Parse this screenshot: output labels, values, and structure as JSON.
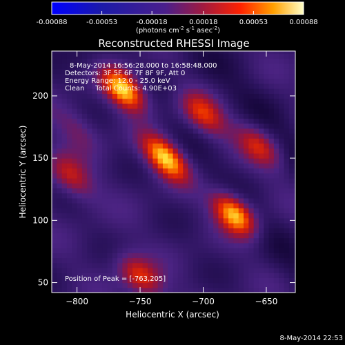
{
  "chart_data": {
    "type": "heatmap",
    "title": "Reconstructed RHESSI Image",
    "colorbar": {
      "ticks": [
        "-0.00088",
        "-0.00053",
        "-0.00018",
        "0.00018",
        "0.00053",
        "0.00088"
      ],
      "range": [
        -0.00088,
        0.00088
      ],
      "unit_base": "(photons cm",
      "unit_sup1": "-2",
      "unit_mid": " s",
      "unit_sup2": "-1",
      "unit_mid2": " asec",
      "unit_sup3": "-2",
      "unit_end": ")"
    },
    "annotations": {
      "time": "8-May-2014 16:56:28.000 to 16:58:48.000",
      "detectors": "Detectors: 3F 5F 6F 7F 8F 9F, Att 0",
      "energy": "Energy Range: 12.0 - 25.0 keV",
      "clean": "Clean     Total Counts: 4.90E+03",
      "peak": "Position of Peak = [-763,205]"
    },
    "xlabel": "Heliocentric X (arcsec)",
    "ylabel": "Heliocentric Y (arcsec)",
    "xlim": [
      -820,
      -627
    ],
    "ylim": [
      42,
      236
    ],
    "xticks": [
      -800,
      -750,
      -700,
      -650
    ],
    "yticks": [
      50,
      100,
      150,
      200
    ],
    "blobs": [
      {
        "x": -763,
        "y": 205,
        "amp": 1.0
      },
      {
        "x": -730,
        "y": 151,
        "amp": 0.92
      },
      {
        "x": -675,
        "y": 106,
        "amp": 0.95
      },
      {
        "x": -750,
        "y": 55,
        "amp": 0.55
      },
      {
        "x": -700,
        "y": 185,
        "amp": 0.55
      },
      {
        "x": -655,
        "y": 160,
        "amp": 0.45
      },
      {
        "x": -805,
        "y": 135,
        "amp": 0.45
      },
      {
        "x": -800,
        "y": 175,
        "amp": 0.25
      }
    ],
    "footer": "8-May-2014 22:53"
  }
}
